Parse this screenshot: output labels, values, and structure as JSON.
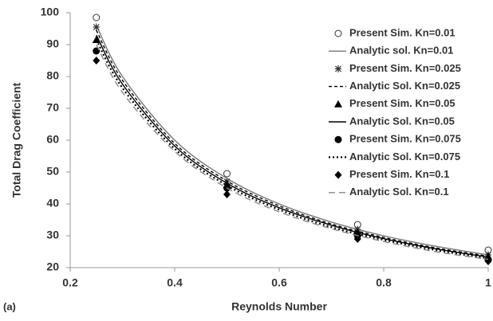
{
  "chart_data": {
    "type": "line",
    "x_label": "Reynolds Number",
    "y_label": "Total Drag Coefficient",
    "panel_label": "(a)",
    "xlim": [
      0.2,
      1
    ],
    "xticks": [
      0.2,
      0.4,
      0.6,
      0.8,
      1
    ],
    "ylim": [
      20,
      100
    ],
    "yticks": [
      20,
      30,
      40,
      50,
      60,
      70,
      80,
      90,
      100
    ],
    "legend": "top-right",
    "series": [
      {
        "name": "Present Sim. Kn=0.01",
        "type": "scatter",
        "marker": "circle-open",
        "color": "#333333",
        "x": [
          0.25,
          0.5,
          0.75,
          1
        ],
        "values": [
          98.5,
          49.5,
          33.5,
          25.5
        ]
      },
      {
        "name": "Analytic sol. Kn=0.01",
        "type": "line",
        "dash": "solid",
        "color": "#777777",
        "x": [
          0.25,
          0.3,
          0.4,
          0.5,
          0.6,
          0.7,
          0.8,
          0.9,
          1
        ],
        "values": [
          96,
          80,
          60,
          48,
          40,
          34.3,
          30,
          26.7,
          24
        ]
      },
      {
        "name": "Present Sim. Kn=0.025",
        "type": "scatter",
        "marker": "star",
        "color": "#333333",
        "x": [
          0.25,
          0.5,
          0.75,
          1
        ],
        "values": [
          95.5,
          47,
          32,
          24
        ]
      },
      {
        "name": "Analytic Sol. Kn=0.025",
        "type": "line",
        "dash": "short-dash",
        "color": "#000000",
        "x": [
          0.25,
          0.3,
          0.4,
          0.5,
          0.6,
          0.7,
          0.8,
          0.9,
          1
        ],
        "values": [
          94.5,
          78.8,
          59,
          47.2,
          39.4,
          33.7,
          29.5,
          26.2,
          23.6
        ]
      },
      {
        "name": "Present Sim. Kn=0.05",
        "type": "scatter",
        "marker": "triangle",
        "color": "#000000",
        "x": [
          0.25,
          0.5,
          0.75,
          1
        ],
        "values": [
          91.5,
          46,
          31,
          23.5
        ]
      },
      {
        "name": "Analytic Sol. Kn=0.05",
        "type": "line",
        "dash": "solid",
        "color": "#000000",
        "x": [
          0.25,
          0.3,
          0.4,
          0.5,
          0.6,
          0.7,
          0.8,
          0.9,
          1
        ],
        "values": [
          93,
          77.6,
          58.2,
          46.5,
          38.8,
          33.3,
          29.1,
          25.9,
          23.3
        ]
      },
      {
        "name": "Present Sim. Kn=0.075",
        "type": "scatter",
        "marker": "circle",
        "color": "#000000",
        "x": [
          0.25,
          0.5,
          0.75,
          1
        ],
        "values": [
          88,
          45,
          30,
          22.5
        ]
      },
      {
        "name": "Analytic Sol. Kn=0.075",
        "type": "line",
        "dash": "dot",
        "color": "#000000",
        "x": [
          0.25,
          0.3,
          0.4,
          0.5,
          0.6,
          0.7,
          0.8,
          0.9,
          1
        ],
        "values": [
          91.5,
          76.4,
          57.3,
          45.8,
          38.2,
          32.7,
          28.7,
          25.5,
          22.9
        ]
      },
      {
        "name": "Present Sim. Kn=0.1",
        "type": "scatter",
        "marker": "diamond",
        "color": "#000000",
        "x": [
          0.25,
          0.5,
          0.75,
          1
        ],
        "values": [
          85,
          43,
          29,
          22
        ]
      },
      {
        "name": "Analytic Sol. Kn=0.1",
        "type": "line",
        "dash": "long-dash",
        "color": "#888888",
        "x": [
          0.25,
          0.3,
          0.4,
          0.5,
          0.6,
          0.7,
          0.8,
          0.9,
          1
        ],
        "values": [
          90,
          75,
          56.5,
          45,
          37.5,
          32.2,
          28.2,
          25,
          22.6
        ]
      }
    ]
  }
}
